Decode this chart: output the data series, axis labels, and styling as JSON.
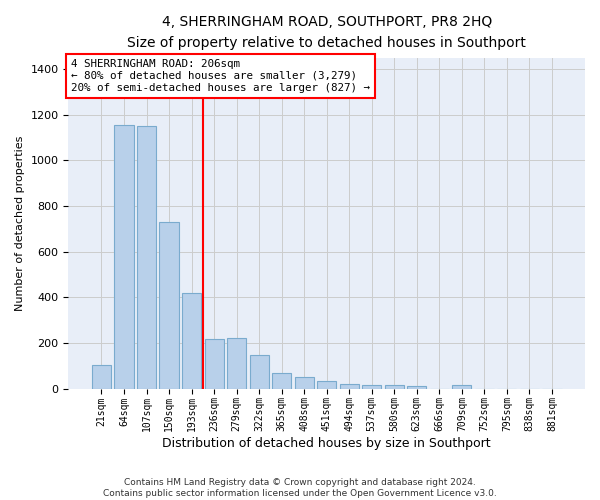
{
  "title": "4, SHERRINGHAM ROAD, SOUTHPORT, PR8 2HQ",
  "subtitle": "Size of property relative to detached houses in Southport",
  "xlabel": "Distribution of detached houses by size in Southport",
  "ylabel": "Number of detached properties",
  "categories": [
    "21sqm",
    "64sqm",
    "107sqm",
    "150sqm",
    "193sqm",
    "236sqm",
    "279sqm",
    "322sqm",
    "365sqm",
    "408sqm",
    "451sqm",
    "494sqm",
    "537sqm",
    "580sqm",
    "623sqm",
    "666sqm",
    "709sqm",
    "752sqm",
    "795sqm",
    "838sqm",
    "881sqm"
  ],
  "values": [
    105,
    1155,
    1150,
    730,
    420,
    218,
    220,
    145,
    70,
    52,
    35,
    22,
    17,
    15,
    12,
    0,
    15,
    0,
    0,
    0,
    0
  ],
  "bar_color": "#b8d0ea",
  "bar_edge_color": "#7aabce",
  "grid_color": "#cccccc",
  "axes_bg_color": "#e8eef8",
  "red_line_x": 4.5,
  "annotation_line1": "4 SHERRINGHAM ROAD: 206sqm",
  "annotation_line2": "← 80% of detached houses are smaller (3,279)",
  "annotation_line3": "20% of semi-detached houses are larger (827) →",
  "ylim": [
    0,
    1450
  ],
  "yticks": [
    0,
    200,
    400,
    600,
    800,
    1000,
    1200,
    1400
  ],
  "title_fontsize": 10,
  "subtitle_fontsize": 9,
  "ylabel_fontsize": 8,
  "xlabel_fontsize": 9,
  "footer_line1": "Contains HM Land Registry data © Crown copyright and database right 2024.",
  "footer_line2": "Contains public sector information licensed under the Open Government Licence v3.0."
}
